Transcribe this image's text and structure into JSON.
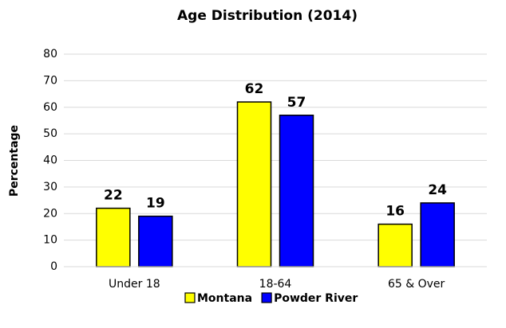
{
  "chart_data": {
    "type": "bar",
    "title": "Age Distribution (2014)",
    "y_label": "Percentage",
    "categories": [
      "Under 18",
      "18-64",
      "65 & Over"
    ],
    "series": [
      {
        "name": "Montana",
        "color": "#ffff00",
        "values": [
          22,
          62,
          16
        ]
      },
      {
        "name": "Powder River",
        "color": "#0000ff",
        "values": [
          19,
          57,
          24
        ]
      }
    ],
    "ylim": [
      0,
      80
    ],
    "yticks": [
      0,
      10,
      20,
      30,
      40,
      50,
      60,
      70,
      80
    ],
    "grid": true,
    "legend": "bottom"
  }
}
